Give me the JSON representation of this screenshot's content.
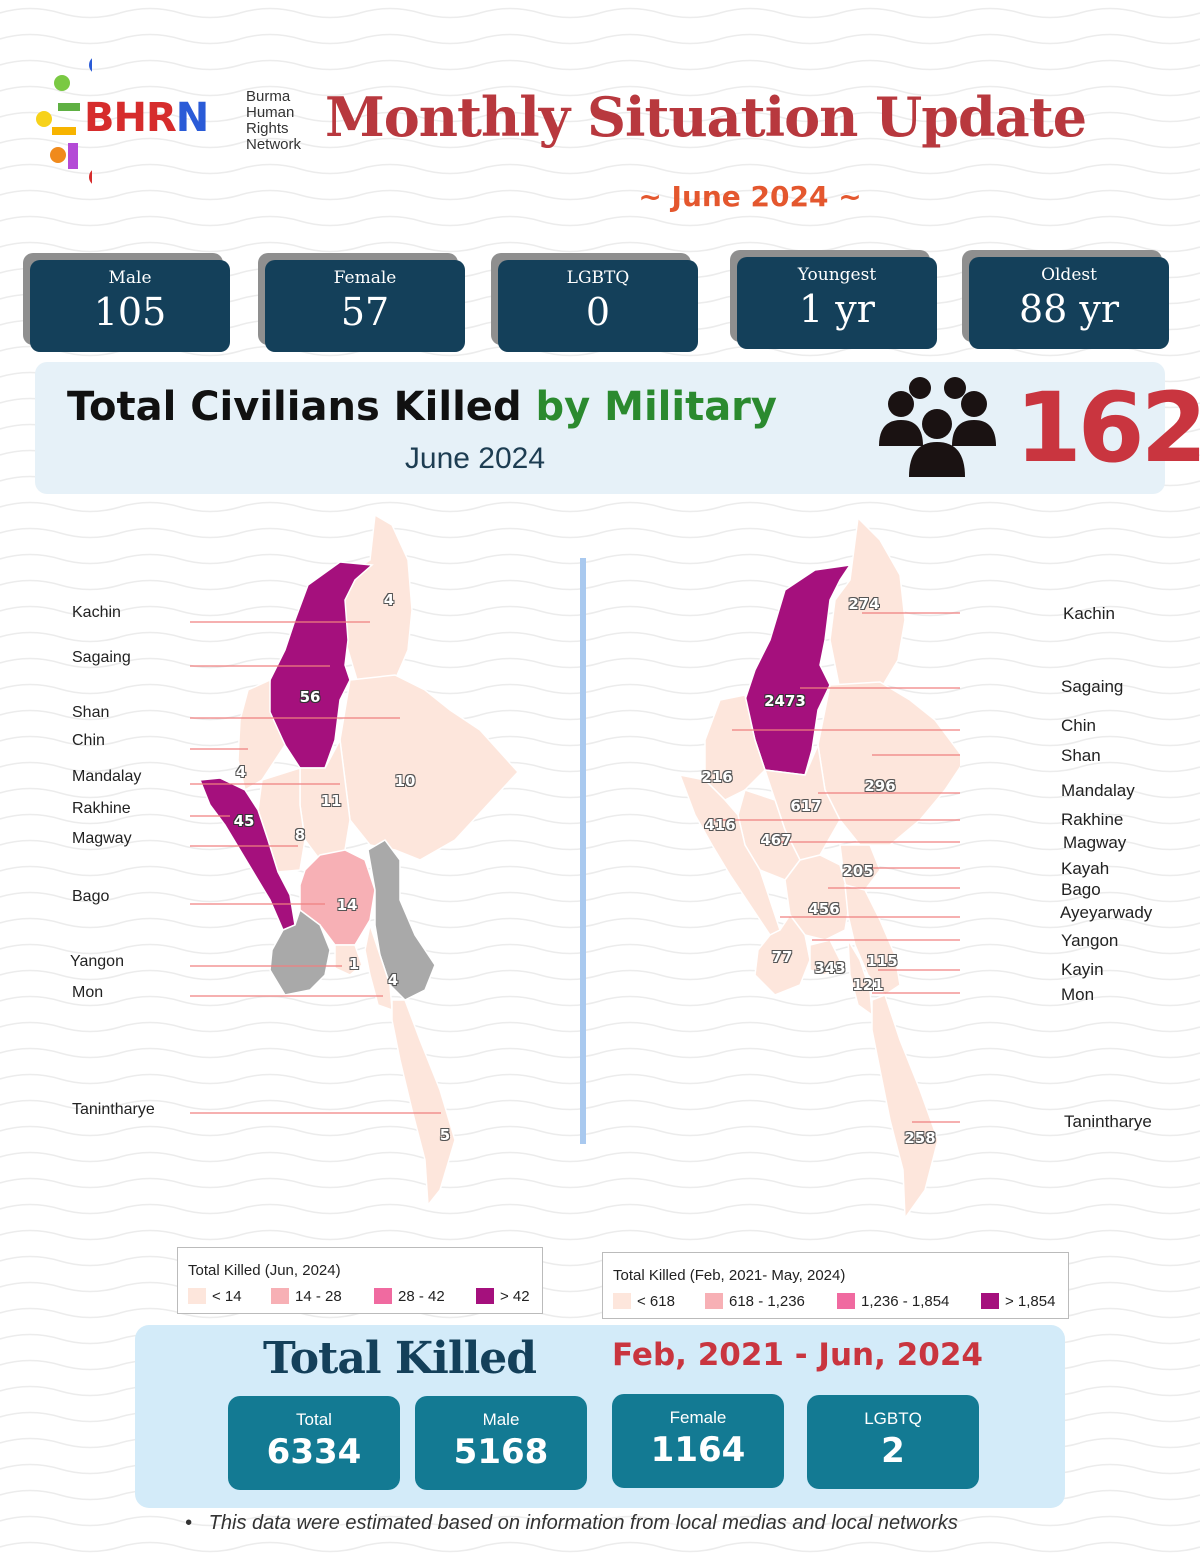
{
  "header": {
    "logo_text": [
      "B",
      "H",
      "R",
      "N"
    ],
    "logo_subtitle": [
      "Burma",
      "Human",
      "Rights",
      "Network"
    ],
    "title": "Monthly Situation Update",
    "subtitle": "~ June 2024 ~"
  },
  "stats": [
    {
      "label": "Male",
      "value": "105"
    },
    {
      "label": "Female",
      "value": "57"
    },
    {
      "label": "LGBTQ",
      "value": "0"
    },
    {
      "label": "Youngest",
      "value": "1 yr"
    },
    {
      "label": "Oldest",
      "value": "88 yr"
    }
  ],
  "banner": {
    "title_black": "Total Civilians Killed ",
    "title_green": "by Military",
    "month": "June 2024",
    "total": "162",
    "icon": "people-group-icon"
  },
  "map_june": {
    "labels": [
      "Kachin",
      "Sagaing",
      "Shan",
      "Chin",
      "Mandalay",
      "Rakhine",
      "Magway",
      "Bago",
      "Yangon",
      "Mon",
      "Tanintharye"
    ],
    "values": [
      "4",
      "56",
      "10",
      "4",
      "11",
      "45",
      "8",
      "14",
      "1",
      "4",
      "5"
    ],
    "legend": {
      "title": "Total Killed (Jun, 2024)",
      "items": [
        "< 14",
        "14 - 28",
        "28 - 42",
        "> 42"
      ],
      "colors": [
        "#fde6dc",
        "#f7b0b5",
        "#f06aa0",
        "#a5107d"
      ]
    },
    "no_data_color": "#a9a9a9"
  },
  "map_cumulative": {
    "labels": [
      "Kachin",
      "Sagaing",
      "Chin",
      "Shan",
      "Mandalay",
      "Rakhine",
      "Magway",
      "Kayah",
      "Bago",
      "Ayeyarwady",
      "Yangon",
      "Kayin",
      "Mon",
      "Tanintharye"
    ],
    "values": [
      "274",
      "2473",
      "216",
      "296",
      "617",
      "416",
      "467",
      "205",
      "456",
      "77",
      "343",
      "115",
      "121",
      "258"
    ],
    "legend": {
      "title": "Total Killed (Feb, 2021- May, 2024)",
      "items": [
        "< 618",
        "618 - 1,236",
        "1,236 - 1,854",
        "> 1,854"
      ],
      "colors": [
        "#fde6dc",
        "#f7b0b5",
        "#f06aa0",
        "#a5107d"
      ]
    }
  },
  "totals": {
    "title": "Total Killed",
    "range": "Feb, 2021 - Jun, 2024",
    "cards": [
      {
        "label": "Total",
        "value": "6334"
      },
      {
        "label": "Male",
        "value": "5168"
      },
      {
        "label": "Female",
        "value": "1164"
      },
      {
        "label": "LGBTQ",
        "value": "2"
      }
    ]
  },
  "footnote": "This data were estimated based on information from local medias and local networks",
  "colors": {
    "accent_red": "#b8383e",
    "card_dark": "#14405a",
    "card_teal": "#137a93",
    "green": "#2b8a2f"
  }
}
